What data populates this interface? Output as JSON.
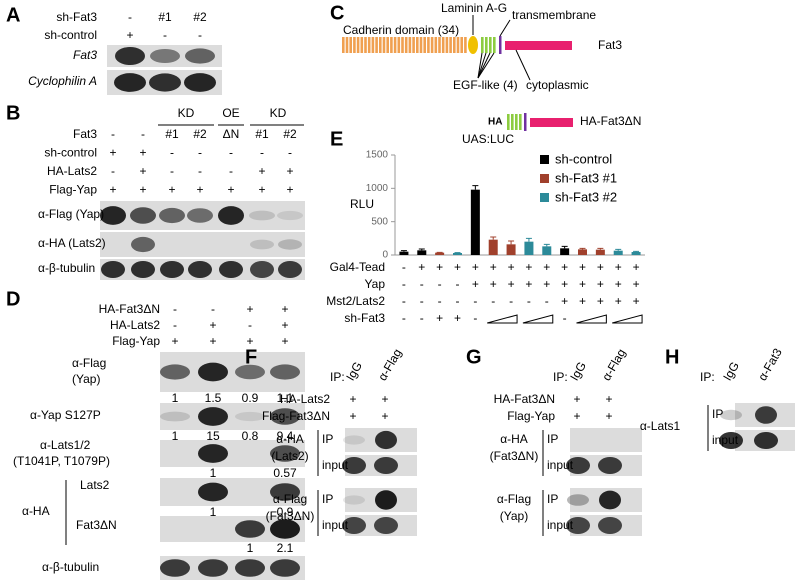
{
  "panel_a": {
    "letter": "A",
    "rows": [
      {
        "label": "sh-Fat3",
        "values": [
          "-",
          "#1",
          "#2"
        ]
      },
      {
        "label": "sh-control",
        "values": [
          "+",
          "-",
          "-"
        ]
      }
    ],
    "blots": [
      "Fat3",
      "Cyclophilin A"
    ]
  },
  "panel_b": {
    "letter": "B",
    "groups": [
      "KD",
      "OE",
      "KD"
    ],
    "rows": [
      {
        "label": "Fat3",
        "values": [
          "-",
          "-",
          "#1",
          "#2",
          "ΔN",
          "#1",
          "#2"
        ]
      },
      {
        "label": "sh-control",
        "values": [
          "+",
          "+",
          "-",
          "-",
          "-",
          "-",
          "-"
        ]
      },
      {
        "label": "HA-Lats2",
        "values": [
          "-",
          "+",
          "-",
          "-",
          "-",
          "+",
          "+"
        ]
      },
      {
        "label": "Flag-Yap",
        "values": [
          "+",
          "+",
          "+",
          "+",
          "+",
          "+",
          "+"
        ]
      }
    ],
    "blots": [
      "α-Flag (Yap)",
      "α-HA (Lats2)",
      "α-β-tubulin"
    ]
  },
  "panel_c": {
    "letter": "C",
    "cadherin": "Cadherin domain (34)",
    "laminin": "Laminin A-G",
    "transmembrane": "transmembrane",
    "full_name": "Fat3",
    "egf": "EGF-like (4)",
    "cytoplasmic": "cytoplasmic",
    "tag": "HA",
    "short_name": "HA-Fat3ΔN"
  },
  "panel_d": {
    "letter": "D",
    "rows": [
      {
        "label": "HA-Fat3ΔN",
        "values": [
          "-",
          "-",
          "+",
          "+"
        ]
      },
      {
        "label": "HA-Lats2",
        "values": [
          "-",
          "+",
          "-",
          "+"
        ]
      },
      {
        "label": "Flag-Yap",
        "values": [
          "+",
          "+",
          "+",
          "+"
        ]
      }
    ],
    "group_label": "α-HA",
    "blots": [
      {
        "label": [
          "α-Flag",
          "(Yap)"
        ],
        "quant": [
          1,
          1.5,
          0.9,
          1.1
        ]
      },
      {
        "label": [
          "α-Yap S127P"
        ],
        "quant": [
          1,
          15,
          0.8,
          9.4
        ]
      },
      {
        "label": [
          "α-Lats1/2",
          "(T1041P, T1079P)"
        ],
        "quant": [
          null,
          1,
          null,
          0.57
        ]
      },
      {
        "label": [
          "Lats2"
        ],
        "quant": [
          null,
          1,
          null,
          0.9
        ]
      },
      {
        "label": [
          "Fat3ΔN"
        ],
        "quant": [
          null,
          null,
          1,
          2.1
        ]
      },
      {
        "label": [
          "α-β-tubulin"
        ]
      }
    ]
  },
  "panel_e": {
    "letter": "E"
  },
  "panel_f": {
    "letter": "F",
    "ip_label": "IP:",
    "ip_cols": [
      "IgG",
      "α-Flag"
    ],
    "rows": [
      {
        "label": "HA-Lats2",
        "values": [
          "+",
          "+"
        ]
      },
      {
        "label": "Flag-Fat3ΔN",
        "values": [
          "+",
          "+"
        ]
      }
    ],
    "blots": [
      {
        "label": [
          "α-HA",
          "(Lats2)"
        ],
        "lanes": [
          "IP",
          "input"
        ]
      },
      {
        "label": [
          "α-Flag",
          "(Fat3ΔN)"
        ],
        "lanes": [
          "IP",
          "input"
        ]
      }
    ]
  },
  "panel_g": {
    "letter": "G",
    "ip_label": "IP:",
    "ip_cols": [
      "IgG",
      "α-Flag"
    ],
    "rows": [
      {
        "label": "HA-Fat3ΔN",
        "values": [
          "+",
          "+"
        ]
      },
      {
        "label": "Flag-Yap",
        "values": [
          "+",
          "+"
        ]
      }
    ],
    "blots": [
      {
        "label": [
          "α-HA",
          "(Fat3ΔN)"
        ],
        "lanes": [
          "IP",
          "input"
        ]
      },
      {
        "label": [
          "α-Flag",
          "(Yap)"
        ],
        "lanes": [
          "IP",
          "input"
        ]
      }
    ]
  },
  "panel_h": {
    "letter": "H",
    "ip_label": "IP:",
    "ip_cols": [
      "IgG",
      "α-Fat3"
    ],
    "blots": [
      {
        "label": [
          "α-Lats1"
        ],
        "lanes": [
          "IP",
          "input"
        ]
      }
    ]
  },
  "chart_data": {
    "type": "bar",
    "title": "UAS:LUC",
    "y_label": "RLU",
    "ylim": [
      0,
      1500
    ],
    "yticks": [
      0,
      500,
      1000,
      1500
    ],
    "legend": "upper right",
    "series": [
      {
        "name": "sh-control",
        "color": "#000000",
        "values": [
          50,
          70,
          null,
          null,
          980,
          null,
          null,
          null,
          null,
          100,
          null,
          null,
          null,
          null
        ],
        "errors": [
          15,
          20,
          null,
          null,
          60,
          null,
          null,
          null,
          null,
          30,
          null,
          null,
          null,
          null
        ]
      },
      {
        "name": "sh-Fat3 #1",
        "color": "#a0402c",
        "values": [
          null,
          null,
          35,
          null,
          null,
          230,
          160,
          null,
          null,
          null,
          85,
          80,
          null,
          null
        ],
        "errors": [
          null,
          null,
          5,
          null,
          null,
          40,
          50,
          null,
          null,
          null,
          15,
          20,
          null,
          null
        ]
      },
      {
        "name": "sh-Fat3 #2",
        "color": "#2c8a99",
        "values": [
          null,
          null,
          null,
          30,
          null,
          null,
          null,
          200,
          130,
          null,
          null,
          null,
          65,
          45
        ],
        "errors": [
          null,
          null,
          null,
          5,
          null,
          null,
          null,
          50,
          30,
          null,
          null,
          null,
          20,
          10
        ]
      }
    ],
    "conditions": [
      {
        "label": "Gal4-Tead",
        "values": [
          "-",
          "+",
          "+",
          "+",
          "+",
          "+",
          "+",
          "+",
          "+",
          "+",
          "+",
          "+",
          "+",
          "+"
        ]
      },
      {
        "label": "Yap",
        "values": [
          "-",
          "-",
          "-",
          "-",
          "+",
          "+",
          "+",
          "+",
          "+",
          "+",
          "+",
          "+",
          "+",
          "+"
        ]
      },
      {
        "label": "Mst2/Lats2",
        "values": [
          "-",
          "-",
          "-",
          "-",
          "-",
          "-",
          "-",
          "-",
          "-",
          "+",
          "+",
          "+",
          "+",
          "+"
        ]
      },
      {
        "label": "sh-Fat3",
        "values": [
          "-",
          "-",
          "+",
          "+",
          "-",
          null,
          null,
          null,
          null,
          "-",
          null,
          null,
          null,
          null
        ]
      }
    ]
  }
}
